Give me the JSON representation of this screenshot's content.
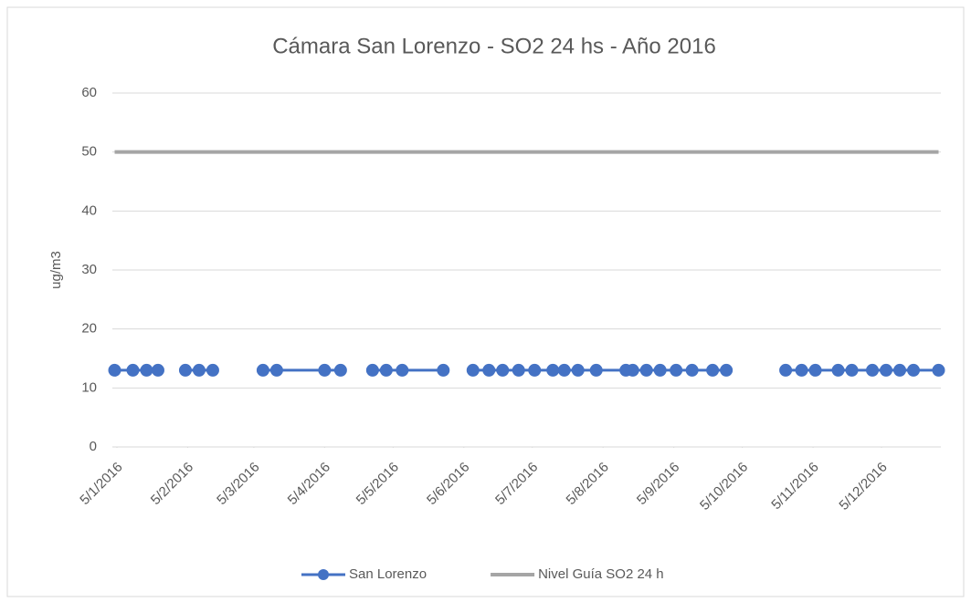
{
  "chart_data": {
    "type": "line",
    "title": "Cámara San Lorenzo - SO2 24 hs - Año 2016",
    "y_label": "ug/m3",
    "x": [
      "2016-01-04",
      "2016-01-12",
      "2016-01-18",
      "2016-01-23",
      "2016-01-28",
      "2016-02-04",
      "2016-02-10",
      "2016-02-16",
      "2016-02-25",
      "2016-03-09",
      "2016-03-15",
      "2016-04-05",
      "2016-04-12",
      "2016-04-18",
      "2016-04-26",
      "2016-05-02",
      "2016-05-09",
      "2016-05-27",
      "2016-06-02",
      "2016-06-09",
      "2016-06-16",
      "2016-06-22",
      "2016-06-29",
      "2016-07-06",
      "2016-07-14",
      "2016-07-19",
      "2016-07-25",
      "2016-08-02",
      "2016-08-15",
      "2016-08-18",
      "2016-08-24",
      "2016-08-30",
      "2016-09-06",
      "2016-09-13",
      "2016-09-22",
      "2016-09-28",
      "2016-10-15",
      "2016-10-24",
      "2016-10-31",
      "2016-11-06",
      "2016-11-16",
      "2016-11-22",
      "2016-12-01",
      "2016-12-07",
      "2016-12-13",
      "2016-12-19",
      "2016-12-30"
    ],
    "series": [
      {
        "name": "San Lorenzo",
        "color": "#4472c4",
        "markers": true,
        "values": [
          13,
          13,
          13,
          13,
          null,
          13,
          13,
          13,
          null,
          13,
          13,
          13,
          13,
          null,
          13,
          13,
          13,
          13,
          null,
          13,
          13,
          13,
          13,
          13,
          13,
          13,
          13,
          13,
          13,
          13,
          13,
          13,
          13,
          13,
          13,
          13,
          null,
          13,
          13,
          13,
          13,
          13,
          13,
          13,
          13,
          13,
          13
        ]
      },
      {
        "name": "Nivel Guía SO2 24 h",
        "color": "#a5a5a5",
        "markers": false,
        "values": [
          50,
          50,
          50,
          50,
          50,
          50,
          50,
          50,
          50,
          50,
          50,
          50,
          50,
          50,
          50,
          50,
          50,
          50,
          50,
          50,
          50,
          50,
          50,
          50,
          50,
          50,
          50,
          50,
          50,
          50,
          50,
          50,
          50,
          50,
          50,
          50,
          50,
          50,
          50,
          50,
          50,
          50,
          50,
          50,
          50,
          50,
          50
        ]
      }
    ],
    "xlim": [
      "2016-01-03",
      "2016-12-31"
    ],
    "xticks": [
      {
        "value": "2016-01-05",
        "label": "5/1/2016"
      },
      {
        "value": "2016-02-05",
        "label": "5/2/2016"
      },
      {
        "value": "2016-03-05",
        "label": "5/3/2016"
      },
      {
        "value": "2016-04-05",
        "label": "5/4/2016"
      },
      {
        "value": "2016-05-05",
        "label": "5/5/2016"
      },
      {
        "value": "2016-06-05",
        "label": "5/6/2016"
      },
      {
        "value": "2016-07-05",
        "label": "5/7/2016"
      },
      {
        "value": "2016-08-05",
        "label": "5/8/2016"
      },
      {
        "value": "2016-09-05",
        "label": "5/9/2016"
      },
      {
        "value": "2016-10-05",
        "label": "5/10/2016"
      },
      {
        "value": "2016-11-05",
        "label": "5/11/2016"
      },
      {
        "value": "2016-12-05",
        "label": "5/12/2016"
      }
    ],
    "ylim": [
      0,
      60
    ],
    "yticks": [
      0,
      10,
      20,
      30,
      40,
      50,
      60
    ],
    "grid": true,
    "legend": "bottom"
  }
}
